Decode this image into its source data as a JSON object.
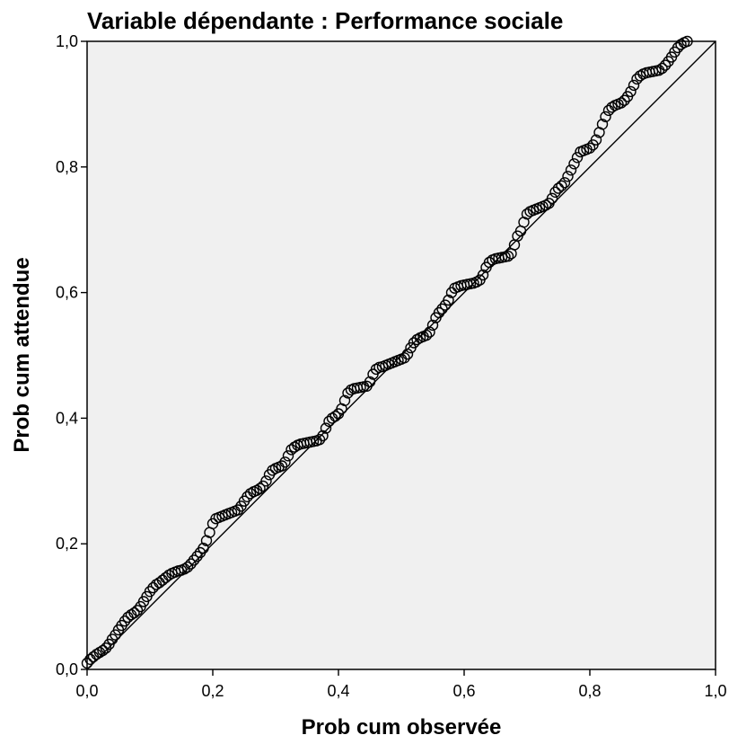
{
  "chart_data": {
    "type": "scatter",
    "title": "Variable dépendante : Performance sociale",
    "xlabel": "Prob cum observée",
    "ylabel": "Prob cum attendue",
    "xlim": [
      0,
      1
    ],
    "ylim": [
      0,
      1
    ],
    "x_ticks": [
      "0,0",
      "0,2",
      "0,4",
      "0,6",
      "0,8",
      "1,0"
    ],
    "y_ticks": [
      "0,0",
      "0,2",
      "0,4",
      "0,6",
      "0,8",
      "1,0"
    ],
    "grid": false,
    "colors": {
      "plot_background": "#f0f0f0",
      "points": "#000000",
      "reference_line": "#000000"
    },
    "reference_line": {
      "from": [
        0,
        0
      ],
      "to": [
        1,
        1
      ]
    },
    "points": [
      [
        0.0,
        0.01
      ],
      [
        0.005,
        0.016
      ],
      [
        0.01,
        0.02
      ],
      [
        0.015,
        0.024
      ],
      [
        0.02,
        0.027
      ],
      [
        0.025,
        0.03
      ],
      [
        0.03,
        0.034
      ],
      [
        0.035,
        0.04
      ],
      [
        0.04,
        0.048
      ],
      [
        0.045,
        0.055
      ],
      [
        0.05,
        0.063
      ],
      [
        0.055,
        0.07
      ],
      [
        0.06,
        0.077
      ],
      [
        0.065,
        0.083
      ],
      [
        0.07,
        0.087
      ],
      [
        0.075,
        0.09
      ],
      [
        0.08,
        0.094
      ],
      [
        0.085,
        0.1
      ],
      [
        0.09,
        0.108
      ],
      [
        0.095,
        0.116
      ],
      [
        0.1,
        0.124
      ],
      [
        0.105,
        0.13
      ],
      [
        0.11,
        0.135
      ],
      [
        0.115,
        0.138
      ],
      [
        0.12,
        0.142
      ],
      [
        0.125,
        0.146
      ],
      [
        0.13,
        0.15
      ],
      [
        0.135,
        0.153
      ],
      [
        0.14,
        0.155
      ],
      [
        0.145,
        0.157
      ],
      [
        0.15,
        0.158
      ],
      [
        0.155,
        0.16
      ],
      [
        0.16,
        0.163
      ],
      [
        0.165,
        0.168
      ],
      [
        0.17,
        0.174
      ],
      [
        0.175,
        0.18
      ],
      [
        0.18,
        0.186
      ],
      [
        0.185,
        0.193
      ],
      [
        0.19,
        0.205
      ],
      [
        0.195,
        0.218
      ],
      [
        0.2,
        0.232
      ],
      [
        0.205,
        0.24
      ],
      [
        0.21,
        0.242
      ],
      [
        0.215,
        0.244
      ],
      [
        0.22,
        0.246
      ],
      [
        0.225,
        0.248
      ],
      [
        0.23,
        0.25
      ],
      [
        0.235,
        0.252
      ],
      [
        0.24,
        0.254
      ],
      [
        0.245,
        0.26
      ],
      [
        0.25,
        0.268
      ],
      [
        0.255,
        0.275
      ],
      [
        0.26,
        0.28
      ],
      [
        0.265,
        0.283
      ],
      [
        0.27,
        0.285
      ],
      [
        0.275,
        0.288
      ],
      [
        0.28,
        0.292
      ],
      [
        0.285,
        0.3
      ],
      [
        0.29,
        0.31
      ],
      [
        0.295,
        0.317
      ],
      [
        0.3,
        0.32
      ],
      [
        0.305,
        0.322
      ],
      [
        0.31,
        0.324
      ],
      [
        0.315,
        0.33
      ],
      [
        0.32,
        0.34
      ],
      [
        0.325,
        0.35
      ],
      [
        0.33,
        0.354
      ],
      [
        0.335,
        0.357
      ],
      [
        0.34,
        0.359
      ],
      [
        0.345,
        0.36
      ],
      [
        0.35,
        0.361
      ],
      [
        0.355,
        0.362
      ],
      [
        0.36,
        0.363
      ],
      [
        0.365,
        0.364
      ],
      [
        0.37,
        0.366
      ],
      [
        0.375,
        0.372
      ],
      [
        0.38,
        0.384
      ],
      [
        0.385,
        0.395
      ],
      [
        0.39,
        0.4
      ],
      [
        0.395,
        0.403
      ],
      [
        0.4,
        0.407
      ],
      [
        0.405,
        0.415
      ],
      [
        0.41,
        0.428
      ],
      [
        0.415,
        0.44
      ],
      [
        0.42,
        0.445
      ],
      [
        0.425,
        0.447
      ],
      [
        0.43,
        0.448
      ],
      [
        0.435,
        0.449
      ],
      [
        0.44,
        0.45
      ],
      [
        0.445,
        0.451
      ],
      [
        0.45,
        0.458
      ],
      [
        0.455,
        0.47
      ],
      [
        0.46,
        0.478
      ],
      [
        0.465,
        0.481
      ],
      [
        0.47,
        0.482
      ],
      [
        0.475,
        0.484
      ],
      [
        0.48,
        0.486
      ],
      [
        0.485,
        0.488
      ],
      [
        0.49,
        0.49
      ],
      [
        0.495,
        0.492
      ],
      [
        0.5,
        0.494
      ],
      [
        0.505,
        0.496
      ],
      [
        0.51,
        0.502
      ],
      [
        0.515,
        0.512
      ],
      [
        0.52,
        0.52
      ],
      [
        0.525,
        0.525
      ],
      [
        0.53,
        0.528
      ],
      [
        0.535,
        0.53
      ],
      [
        0.54,
        0.532
      ],
      [
        0.545,
        0.537
      ],
      [
        0.55,
        0.548
      ],
      [
        0.555,
        0.56
      ],
      [
        0.56,
        0.568
      ],
      [
        0.565,
        0.574
      ],
      [
        0.57,
        0.58
      ],
      [
        0.575,
        0.588
      ],
      [
        0.58,
        0.6
      ],
      [
        0.585,
        0.607
      ],
      [
        0.59,
        0.609
      ],
      [
        0.595,
        0.611
      ],
      [
        0.6,
        0.612
      ],
      [
        0.605,
        0.613
      ],
      [
        0.61,
        0.614
      ],
      [
        0.615,
        0.615
      ],
      [
        0.62,
        0.617
      ],
      [
        0.625,
        0.62
      ],
      [
        0.63,
        0.628
      ],
      [
        0.635,
        0.64
      ],
      [
        0.64,
        0.648
      ],
      [
        0.645,
        0.652
      ],
      [
        0.65,
        0.654
      ],
      [
        0.655,
        0.655
      ],
      [
        0.66,
        0.656
      ],
      [
        0.665,
        0.657
      ],
      [
        0.67,
        0.658
      ],
      [
        0.675,
        0.662
      ],
      [
        0.68,
        0.676
      ],
      [
        0.685,
        0.69
      ],
      [
        0.69,
        0.698
      ],
      [
        0.695,
        0.712
      ],
      [
        0.7,
        0.725
      ],
      [
        0.705,
        0.729
      ],
      [
        0.71,
        0.731
      ],
      [
        0.715,
        0.733
      ],
      [
        0.72,
        0.735
      ],
      [
        0.725,
        0.737
      ],
      [
        0.73,
        0.739
      ],
      [
        0.735,
        0.742
      ],
      [
        0.74,
        0.75
      ],
      [
        0.745,
        0.76
      ],
      [
        0.75,
        0.766
      ],
      [
        0.755,
        0.77
      ],
      [
        0.76,
        0.775
      ],
      [
        0.765,
        0.785
      ],
      [
        0.77,
        0.795
      ],
      [
        0.775,
        0.805
      ],
      [
        0.78,
        0.815
      ],
      [
        0.785,
        0.824
      ],
      [
        0.79,
        0.826
      ],
      [
        0.795,
        0.828
      ],
      [
        0.8,
        0.83
      ],
      [
        0.805,
        0.835
      ],
      [
        0.81,
        0.843
      ],
      [
        0.815,
        0.855
      ],
      [
        0.82,
        0.868
      ],
      [
        0.825,
        0.88
      ],
      [
        0.83,
        0.89
      ],
      [
        0.835,
        0.895
      ],
      [
        0.84,
        0.898
      ],
      [
        0.845,
        0.9
      ],
      [
        0.85,
        0.902
      ],
      [
        0.855,
        0.906
      ],
      [
        0.86,
        0.912
      ],
      [
        0.865,
        0.92
      ],
      [
        0.87,
        0.93
      ],
      [
        0.875,
        0.94
      ],
      [
        0.88,
        0.945
      ],
      [
        0.885,
        0.948
      ],
      [
        0.89,
        0.95
      ],
      [
        0.895,
        0.951
      ],
      [
        0.9,
        0.952
      ],
      [
        0.905,
        0.953
      ],
      [
        0.91,
        0.954
      ],
      [
        0.915,
        0.957
      ],
      [
        0.92,
        0.962
      ],
      [
        0.925,
        0.968
      ],
      [
        0.93,
        0.975
      ],
      [
        0.935,
        0.983
      ],
      [
        0.94,
        0.99
      ],
      [
        0.945,
        0.995
      ],
      [
        0.95,
        0.998
      ],
      [
        0.955,
        1.0
      ]
    ]
  }
}
